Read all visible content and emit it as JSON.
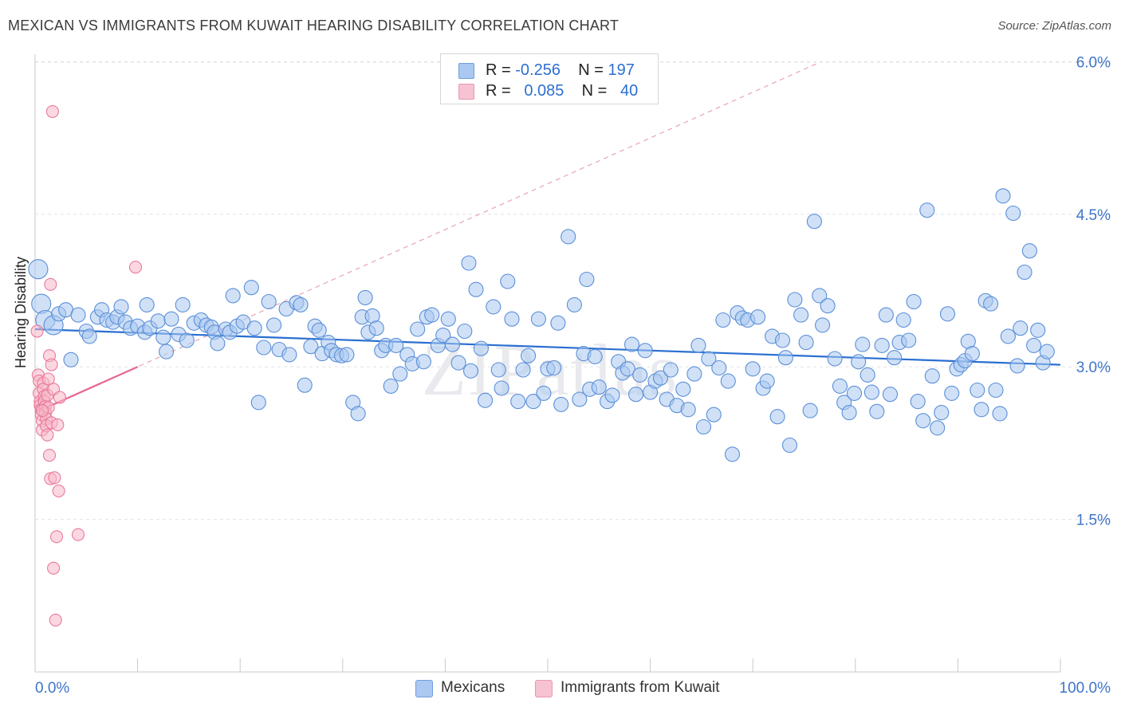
{
  "title": "MEXICAN VS IMMIGRANTS FROM KUWAIT HEARING DISABILITY CORRELATION CHART",
  "source": "Source: ZipAtlas.com",
  "watermark": "ZIPatlas",
  "legend": {
    "rows": [
      {
        "r_label": "R =",
        "r_value": "-0.256",
        "n_label": "N =",
        "n_value": "197",
        "color": "#aac8f0"
      },
      {
        "r_label": "R =",
        "r_value": "0.085",
        "n_label": "N =",
        "n_value": "40",
        "color": "#f7b8c9"
      }
    ]
  },
  "bottom_legend": [
    {
      "label": "Mexicans",
      "color": "#aac8f0"
    },
    {
      "label": "Immigrants from Kuwait",
      "color": "#f7b8c9"
    }
  ],
  "chart_data": {
    "type": "scatter",
    "title": "MEXICAN VS IMMIGRANTS FROM KUWAIT HEARING DISABILITY CORRELATION CHART",
    "xlabel": "",
    "ylabel": "Hearing Disability",
    "xlim": [
      0,
      100
    ],
    "ylim": [
      0,
      6.3
    ],
    "x_tick_labels": [
      "0.0%",
      "100.0%"
    ],
    "y_ticks": [
      1.5,
      3.0,
      4.5,
      6.0
    ],
    "y_tick_labels": [
      "1.5%",
      "3.0%",
      "4.5%",
      "6.0%"
    ],
    "grid": true,
    "series": [
      {
        "name": "Mexicans",
        "color": "#5b8fd8",
        "fill": "#aac8f0",
        "trend": {
          "x": [
            0,
            100
          ],
          "y": [
            3.37,
            3.02
          ],
          "color": "#2a6fd1"
        },
        "points": [
          [
            0.3,
            3.96
          ],
          [
            0.6,
            3.62
          ],
          [
            1.0,
            3.46
          ],
          [
            1.8,
            3.41
          ],
          [
            2.3,
            3.52
          ],
          [
            3.0,
            3.56
          ],
          [
            3.5,
            3.07
          ],
          [
            4.2,
            3.51
          ],
          [
            5.0,
            3.35
          ],
          [
            5.3,
            3.3
          ],
          [
            6.1,
            3.49
          ],
          [
            6.5,
            3.56
          ],
          [
            7.0,
            3.46
          ],
          [
            7.6,
            3.44
          ],
          [
            8.0,
            3.49
          ],
          [
            8.4,
            3.59
          ],
          [
            8.8,
            3.44
          ],
          [
            9.3,
            3.38
          ],
          [
            10.0,
            3.4
          ],
          [
            10.7,
            3.34
          ],
          [
            10.9,
            3.61
          ],
          [
            11.2,
            3.38
          ],
          [
            12.0,
            3.45
          ],
          [
            12.5,
            3.29
          ],
          [
            12.8,
            3.15
          ],
          [
            13.3,
            3.47
          ],
          [
            14.0,
            3.32
          ],
          [
            14.4,
            3.61
          ],
          [
            14.8,
            3.26
          ],
          [
            15.5,
            3.43
          ],
          [
            16.2,
            3.46
          ],
          [
            16.7,
            3.41
          ],
          [
            17.2,
            3.39
          ],
          [
            17.5,
            3.34
          ],
          [
            17.8,
            3.23
          ],
          [
            18.6,
            3.37
          ],
          [
            19.0,
            3.34
          ],
          [
            19.3,
            3.7
          ],
          [
            19.7,
            3.4
          ],
          [
            20.3,
            3.44
          ],
          [
            21.1,
            3.78
          ],
          [
            21.4,
            3.38
          ],
          [
            21.8,
            2.65
          ],
          [
            22.3,
            3.19
          ],
          [
            22.8,
            3.64
          ],
          [
            23.3,
            3.41
          ],
          [
            23.8,
            3.17
          ],
          [
            24.5,
            3.57
          ],
          [
            24.8,
            3.12
          ],
          [
            25.5,
            3.63
          ],
          [
            25.9,
            3.61
          ],
          [
            26.3,
            2.82
          ],
          [
            26.9,
            3.2
          ],
          [
            27.3,
            3.4
          ],
          [
            27.7,
            3.36
          ],
          [
            28.0,
            3.13
          ],
          [
            28.6,
            3.24
          ],
          [
            28.9,
            3.16
          ],
          [
            29.4,
            3.12
          ],
          [
            29.9,
            3.11
          ],
          [
            30.4,
            3.12
          ],
          [
            31.0,
            2.65
          ],
          [
            31.5,
            2.54
          ],
          [
            31.9,
            3.49
          ],
          [
            32.2,
            3.68
          ],
          [
            32.5,
            3.34
          ],
          [
            32.9,
            3.5
          ],
          [
            33.3,
            3.38
          ],
          [
            33.8,
            3.16
          ],
          [
            34.2,
            3.21
          ],
          [
            34.7,
            2.81
          ],
          [
            35.2,
            3.21
          ],
          [
            35.6,
            2.93
          ],
          [
            36.3,
            3.12
          ],
          [
            36.8,
            3.03
          ],
          [
            37.3,
            3.37
          ],
          [
            37.9,
            3.05
          ],
          [
            38.2,
            3.49
          ],
          [
            38.7,
            3.51
          ],
          [
            39.3,
            3.21
          ],
          [
            39.8,
            3.31
          ],
          [
            40.3,
            3.47
          ],
          [
            40.7,
            3.22
          ],
          [
            41.3,
            3.04
          ],
          [
            41.9,
            3.35
          ],
          [
            42.3,
            4.02
          ],
          [
            42.5,
            2.96
          ],
          [
            43.0,
            3.76
          ],
          [
            43.5,
            3.18
          ],
          [
            43.9,
            2.67
          ],
          [
            44.7,
            3.59
          ],
          [
            45.2,
            2.97
          ],
          [
            45.5,
            2.79
          ],
          [
            46.1,
            3.84
          ],
          [
            46.5,
            3.47
          ],
          [
            47.1,
            2.66
          ],
          [
            47.6,
            2.97
          ],
          [
            48.1,
            3.11
          ],
          [
            48.6,
            2.66
          ],
          [
            49.1,
            3.47
          ],
          [
            49.6,
            2.74
          ],
          [
            50.0,
            2.98
          ],
          [
            50.6,
            2.99
          ],
          [
            51.0,
            3.43
          ],
          [
            51.3,
            2.63
          ],
          [
            52.0,
            4.28
          ],
          [
            52.6,
            3.61
          ],
          [
            53.1,
            2.68
          ],
          [
            53.5,
            3.13
          ],
          [
            53.8,
            3.86
          ],
          [
            54.1,
            2.78
          ],
          [
            54.6,
            3.1
          ],
          [
            55.0,
            2.8
          ],
          [
            55.8,
            2.66
          ],
          [
            56.3,
            2.72
          ],
          [
            56.9,
            3.05
          ],
          [
            57.3,
            2.94
          ],
          [
            57.8,
            2.98
          ],
          [
            58.2,
            3.22
          ],
          [
            58.6,
            2.73
          ],
          [
            59.0,
            2.92
          ],
          [
            59.5,
            3.16
          ],
          [
            60.0,
            2.75
          ],
          [
            60.5,
            2.86
          ],
          [
            61.0,
            2.89
          ],
          [
            61.6,
            2.68
          ],
          [
            62.0,
            2.97
          ],
          [
            62.6,
            2.62
          ],
          [
            63.2,
            2.78
          ],
          [
            63.7,
            2.58
          ],
          [
            64.3,
            2.93
          ],
          [
            64.7,
            3.21
          ],
          [
            65.2,
            2.41
          ],
          [
            65.7,
            3.08
          ],
          [
            66.2,
            2.53
          ],
          [
            66.7,
            2.99
          ],
          [
            67.1,
            3.46
          ],
          [
            67.6,
            2.86
          ],
          [
            68.0,
            2.14
          ],
          [
            68.5,
            3.53
          ],
          [
            69.0,
            3.48
          ],
          [
            69.5,
            3.46
          ],
          [
            70.0,
            2.98
          ],
          [
            70.5,
            3.49
          ],
          [
            71.0,
            2.79
          ],
          [
            71.4,
            2.86
          ],
          [
            71.9,
            3.3
          ],
          [
            72.4,
            2.51
          ],
          [
            72.9,
            3.26
          ],
          [
            73.2,
            3.09
          ],
          [
            73.6,
            2.23
          ],
          [
            74.1,
            3.66
          ],
          [
            74.7,
            3.51
          ],
          [
            75.2,
            3.24
          ],
          [
            75.6,
            2.57
          ],
          [
            76.0,
            4.43
          ],
          [
            76.5,
            3.7
          ],
          [
            76.8,
            3.41
          ],
          [
            77.3,
            3.6
          ],
          [
            78.0,
            3.08
          ],
          [
            78.5,
            2.81
          ],
          [
            78.9,
            2.65
          ],
          [
            79.4,
            2.55
          ],
          [
            79.9,
            2.74
          ],
          [
            80.3,
            3.05
          ],
          [
            80.7,
            3.22
          ],
          [
            81.2,
            2.92
          ],
          [
            81.6,
            2.75
          ],
          [
            82.1,
            2.56
          ],
          [
            82.6,
            3.21
          ],
          [
            83.0,
            3.51
          ],
          [
            83.4,
            2.73
          ],
          [
            83.8,
            3.09
          ],
          [
            84.3,
            3.24
          ],
          [
            84.7,
            3.46
          ],
          [
            85.2,
            3.26
          ],
          [
            85.7,
            3.64
          ],
          [
            86.1,
            2.66
          ],
          [
            86.6,
            2.47
          ],
          [
            87.0,
            4.54
          ],
          [
            87.5,
            2.91
          ],
          [
            88.0,
            2.4
          ],
          [
            88.4,
            2.55
          ],
          [
            89.0,
            3.52
          ],
          [
            89.4,
            2.74
          ],
          [
            89.9,
            2.98
          ],
          [
            90.3,
            3.02
          ],
          [
            90.7,
            3.06
          ],
          [
            91.0,
            3.25
          ],
          [
            91.4,
            3.13
          ],
          [
            91.9,
            2.77
          ],
          [
            92.3,
            2.58
          ],
          [
            92.7,
            3.65
          ],
          [
            93.2,
            3.62
          ],
          [
            93.7,
            2.77
          ],
          [
            94.1,
            2.54
          ],
          [
            94.4,
            4.68
          ],
          [
            94.9,
            3.3
          ],
          [
            95.4,
            4.51
          ],
          [
            95.8,
            3.01
          ],
          [
            96.1,
            3.38
          ],
          [
            96.5,
            3.93
          ],
          [
            97.0,
            4.14
          ],
          [
            97.4,
            3.21
          ],
          [
            97.8,
            3.36
          ],
          [
            98.3,
            3.04
          ],
          [
            98.7,
            3.15
          ]
        ]
      },
      {
        "name": "Immigrants from Kuwait",
        "color": "#e8799b",
        "fill": "#f7b8c9",
        "trend": {
          "x": [
            0,
            10
          ],
          "y": [
            2.55,
            3.0
          ],
          "color": "#e8668f"
        },
        "trend_extension": {
          "x": [
            0,
            100
          ],
          "y": [
            2.55,
            7.05
          ],
          "color": "#e8a3b8",
          "dashed": true
        },
        "points": [
          [
            0.2,
            3.35
          ],
          [
            0.3,
            2.92
          ],
          [
            0.4,
            2.86
          ],
          [
            0.4,
            2.74
          ],
          [
            0.5,
            2.66
          ],
          [
            0.5,
            2.62
          ],
          [
            0.6,
            2.58
          ],
          [
            0.6,
            2.53
          ],
          [
            0.7,
            2.47
          ],
          [
            0.7,
            2.38
          ],
          [
            0.8,
            2.84
          ],
          [
            0.8,
            2.78
          ],
          [
            0.9,
            2.71
          ],
          [
            0.9,
            2.66
          ],
          [
            1.0,
            2.61
          ],
          [
            1.0,
            2.55
          ],
          [
            1.1,
            2.49
          ],
          [
            1.1,
            2.42
          ],
          [
            1.2,
            2.33
          ],
          [
            1.2,
            2.72
          ],
          [
            1.3,
            2.88
          ],
          [
            1.3,
            2.6
          ],
          [
            1.4,
            3.11
          ],
          [
            1.4,
            2.13
          ],
          [
            1.5,
            1.9
          ],
          [
            1.5,
            3.81
          ],
          [
            1.6,
            3.02
          ],
          [
            1.6,
            2.45
          ],
          [
            1.7,
            5.51
          ],
          [
            1.8,
            2.78
          ],
          [
            1.8,
            1.02
          ],
          [
            1.9,
            1.91
          ],
          [
            2.0,
            0.51
          ],
          [
            2.1,
            1.33
          ],
          [
            2.2,
            2.43
          ],
          [
            2.3,
            1.78
          ],
          [
            2.4,
            2.7
          ],
          [
            4.2,
            1.35
          ],
          [
            9.8,
            3.98
          ],
          [
            0.7,
            2.57
          ]
        ]
      }
    ]
  }
}
